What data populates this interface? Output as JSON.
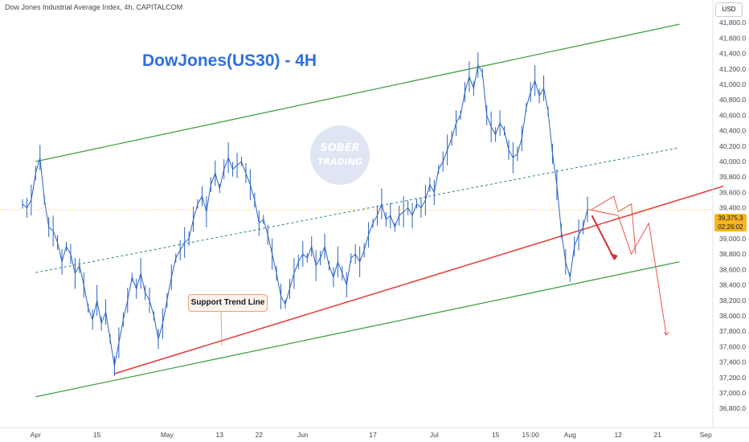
{
  "header": {
    "symbol_line": "Dow Jones Industrial Average Index, 4h, CAPITALCOM",
    "currency_button": "USD"
  },
  "chart_data": {
    "type": "line",
    "title": "DowJones(US30) - 4H",
    "xlabel": "",
    "ylabel": "",
    "ylim": [
      36700,
      41900
    ],
    "grid": false,
    "legend": "none",
    "y_ticks": [
      "41,800.0",
      "41,600.0",
      "41,400.0",
      "41,200.0",
      "41,000.0",
      "40,800.0",
      "40,600.0",
      "40,400.0",
      "40,200.0",
      "40,000.0",
      "39,800.0",
      "39,600.0",
      "39,400.0",
      "39,200.0",
      "39,000.0",
      "38,800.0",
      "38,600.0",
      "38,400.0",
      "38,200.0",
      "38,000.0",
      "37,800.0",
      "37,600.0",
      "37,400.0",
      "37,200.0",
      "37,000.0",
      "36,800.0"
    ],
    "y_tick_values": [
      41800,
      41600,
      41400,
      41200,
      41000,
      40800,
      40600,
      40400,
      40200,
      40000,
      39800,
      39600,
      39400,
      39200,
      39000,
      38800,
      38600,
      38400,
      38200,
      38000,
      37800,
      37600,
      37400,
      37200,
      37000,
      36800
    ],
    "x_ticks": [
      {
        "label": "Apr",
        "t": 3
      },
      {
        "label": "15",
        "t": 17
      },
      {
        "label": "May",
        "t": 33
      },
      {
        "label": "13",
        "t": 45
      },
      {
        "label": "22",
        "t": 54
      },
      {
        "label": "Jun",
        "t": 64
      },
      {
        "label": "17",
        "t": 80
      },
      {
        "label": "Jul",
        "t": 94
      },
      {
        "label": "15",
        "t": 108
      },
      {
        "label": "15:00",
        "t": 116
      },
      {
        "label": "Aug",
        "t": 125
      },
      {
        "label": "12",
        "t": 136
      },
      {
        "label": "21",
        "t": 145
      },
      {
        "label": "Sep",
        "t": 156
      }
    ],
    "series": [
      {
        "points": [
          [
            0,
            39450
          ],
          [
            1,
            39400
          ],
          [
            2,
            39500
          ],
          [
            3,
            39850
          ],
          [
            4,
            40050
          ],
          [
            5,
            39500
          ],
          [
            6,
            39150
          ],
          [
            7,
            39100
          ],
          [
            8,
            38950
          ],
          [
            9,
            38700
          ],
          [
            10,
            38900
          ],
          [
            11,
            38800
          ],
          [
            12,
            38550
          ],
          [
            13,
            38650
          ],
          [
            14,
            38400
          ],
          [
            15,
            38100
          ],
          [
            16,
            37950
          ],
          [
            17,
            38200
          ],
          [
            18,
            37900
          ],
          [
            19,
            38050
          ],
          [
            20,
            37700
          ],
          [
            21,
            37350
          ],
          [
            22,
            37650
          ],
          [
            23,
            37950
          ],
          [
            24,
            38200
          ],
          [
            25,
            38500
          ],
          [
            26,
            38350
          ],
          [
            27,
            38550
          ],
          [
            28,
            38300
          ],
          [
            29,
            38200
          ],
          [
            30,
            38000
          ],
          [
            31,
            37700
          ],
          [
            32,
            37900
          ],
          [
            33,
            38200
          ],
          [
            34,
            38500
          ],
          [
            35,
            38750
          ],
          [
            36,
            38850
          ],
          [
            37,
            38950
          ],
          [
            38,
            39000
          ],
          [
            39,
            39250
          ],
          [
            40,
            39450
          ],
          [
            41,
            39550
          ],
          [
            42,
            39350
          ],
          [
            43,
            39700
          ],
          [
            44,
            39850
          ],
          [
            45,
            39650
          ],
          [
            46,
            39900
          ],
          [
            47,
            40050
          ],
          [
            48,
            39900
          ],
          [
            49,
            39950
          ],
          [
            50,
            40000
          ],
          [
            51,
            39850
          ],
          [
            52,
            39700
          ],
          [
            53,
            39500
          ],
          [
            54,
            39200
          ],
          [
            55,
            39250
          ],
          [
            56,
            39050
          ],
          [
            57,
            38800
          ],
          [
            58,
            38550
          ],
          [
            59,
            38250
          ],
          [
            60,
            38150
          ],
          [
            61,
            38350
          ],
          [
            62,
            38550
          ],
          [
            63,
            38700
          ],
          [
            64,
            38800
          ],
          [
            65,
            38750
          ],
          [
            66,
            38900
          ],
          [
            67,
            38650
          ],
          [
            68,
            38750
          ],
          [
            69,
            38900
          ],
          [
            70,
            38650
          ],
          [
            71,
            38500
          ],
          [
            72,
            38700
          ],
          [
            73,
            38550
          ],
          [
            74,
            38400
          ],
          [
            75,
            38750
          ],
          [
            76,
            38800
          ],
          [
            77,
            38700
          ],
          [
            78,
            38850
          ],
          [
            79,
            39050
          ],
          [
            80,
            39200
          ],
          [
            81,
            39300
          ],
          [
            82,
            39450
          ],
          [
            83,
            39250
          ],
          [
            84,
            39300
          ],
          [
            85,
            39150
          ],
          [
            86,
            39300
          ],
          [
            87,
            39350
          ],
          [
            88,
            39400
          ],
          [
            89,
            39300
          ],
          [
            90,
            39450
          ],
          [
            91,
            39400
          ],
          [
            92,
            39500
          ],
          [
            93,
            39700
          ],
          [
            94,
            39600
          ],
          [
            95,
            39900
          ],
          [
            96,
            40000
          ],
          [
            97,
            40150
          ],
          [
            98,
            40300
          ],
          [
            99,
            40500
          ],
          [
            100,
            40600
          ],
          [
            101,
            40900
          ],
          [
            102,
            41100
          ],
          [
            103,
            40950
          ],
          [
            104,
            41250
          ],
          [
            105,
            41150
          ],
          [
            106,
            40600
          ],
          [
            107,
            40450
          ],
          [
            108,
            40350
          ],
          [
            109,
            40500
          ],
          [
            110,
            40400
          ],
          [
            111,
            40150
          ],
          [
            112,
            40050
          ],
          [
            113,
            40100
          ],
          [
            114,
            40300
          ],
          [
            115,
            40700
          ],
          [
            116,
            40900
          ],
          [
            117,
            41050
          ],
          [
            118,
            40850
          ],
          [
            119,
            40950
          ],
          [
            120,
            40650
          ],
          [
            121,
            40100
          ],
          [
            122,
            39700
          ],
          [
            123,
            39100
          ],
          [
            124,
            38700
          ],
          [
            125,
            38500
          ],
          [
            126,
            38900
          ],
          [
            127,
            39050
          ],
          [
            128,
            39150
          ],
          [
            129,
            39380
          ]
        ]
      }
    ],
    "current_price": "39,375.3",
    "countdown": "02:26:02",
    "annotations": {
      "support_label": "Support Trend Line",
      "watermark_line1": "SOBER",
      "watermark_line2": "TRADING"
    },
    "channel": {
      "upper_line": [
        [
          3,
          40000
        ],
        [
          150,
          41780
        ]
      ],
      "middle_dashed": [
        [
          3,
          38560
        ],
        [
          150,
          40180
        ]
      ],
      "lower_line": [
        [
          3,
          36950
        ],
        [
          150,
          38700
        ]
      ],
      "support_trend": [
        [
          21,
          37250
        ],
        [
          160,
          39680
        ]
      ],
      "projection_primary": [
        [
          129,
          39380
        ],
        [
          136,
          39300
        ],
        [
          139,
          38800
        ],
        [
          143,
          39200
        ],
        [
          147,
          37750
        ]
      ],
      "projection_red_arrow": [
        [
          130,
          39300
        ],
        [
          135,
          38750
        ]
      ],
      "projection_upper_zigzag": [
        [
          130,
          39380
        ],
        [
          135,
          39550
        ],
        [
          136,
          39350
        ],
        [
          139,
          39450
        ],
        [
          140,
          38800
        ]
      ]
    },
    "colors": {
      "price": "#2962c4",
      "channel": "#43a047",
      "support": "#e53935",
      "projection": "#ef5350",
      "title": "#2f6fde",
      "price_tag": "#f7b51f"
    }
  }
}
